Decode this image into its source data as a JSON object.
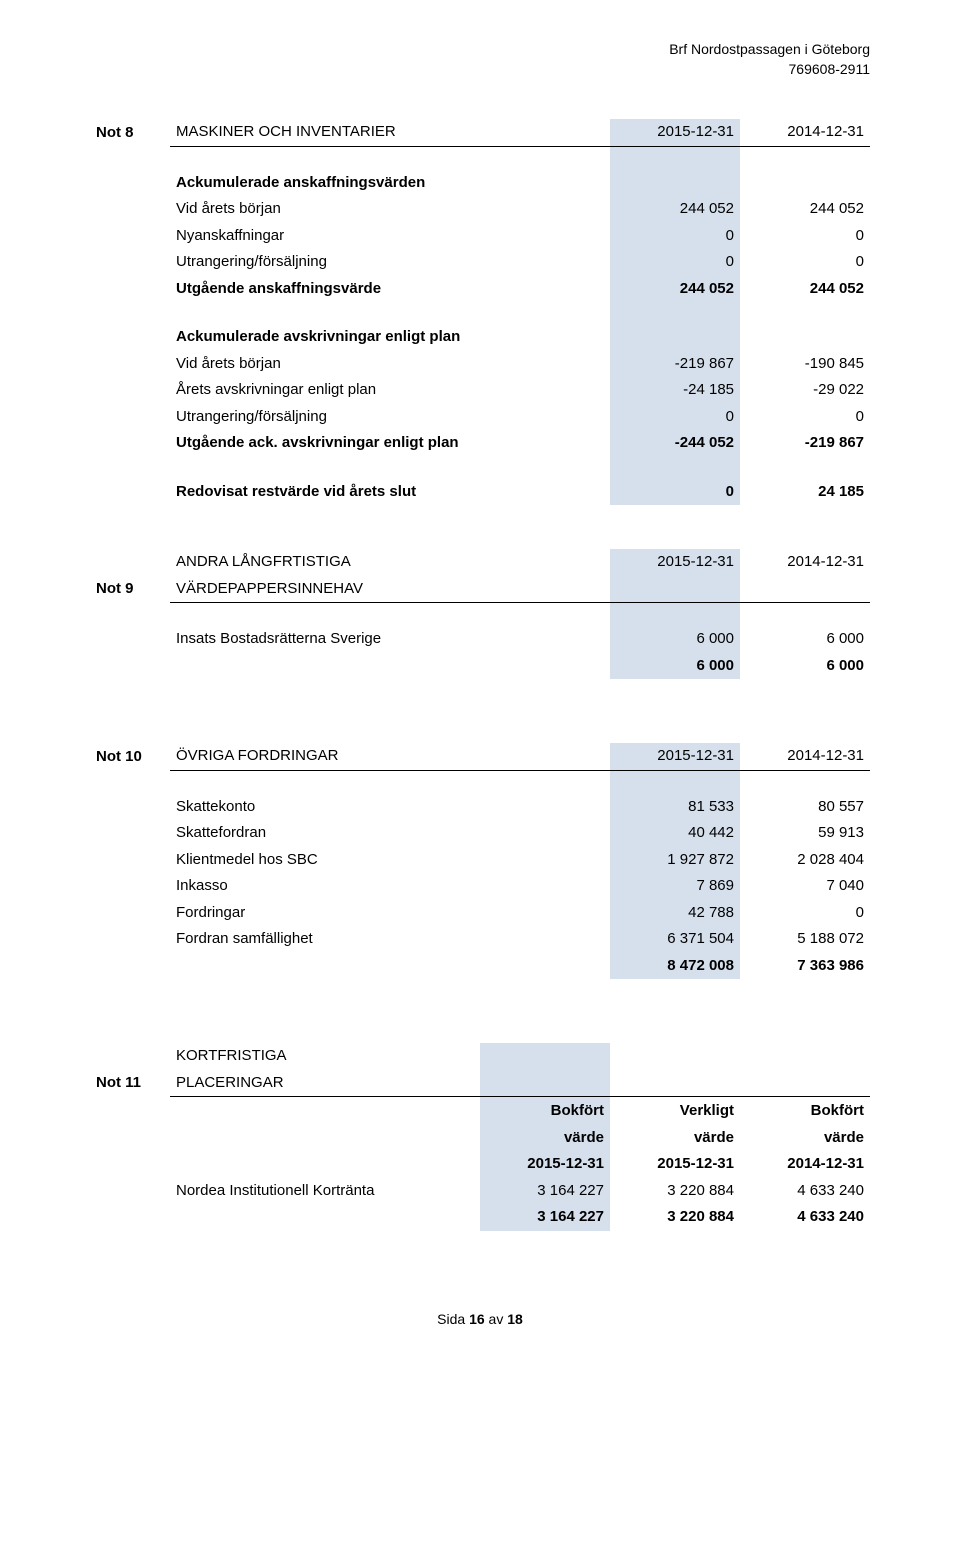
{
  "header": {
    "org_name": "Brf Nordostpassagen i Göteborg",
    "org_number": "769608-2911"
  },
  "colors": {
    "highlight_bg": "#d6e0ed",
    "text": "#000000",
    "background": "#ffffff",
    "rule": "#000000"
  },
  "typography": {
    "font_family": "Segoe UI, Helvetica Neue, Arial, sans-serif",
    "body_fontsize": 15,
    "header_fontsize": 14,
    "note_id_fontsize": 17
  },
  "not8": {
    "id": "Not 8",
    "title": "MASKINER OCH INVENTARIER",
    "col1": "2015-12-31",
    "col2": "2014-12-31",
    "section1_title": "Ackumulerade anskaffningsvärden",
    "rows1": [
      {
        "label": "Vid årets början",
        "v1": "244 052",
        "v2": "244 052"
      },
      {
        "label": "Nyanskaffningar",
        "v1": "0",
        "v2": "0"
      },
      {
        "label": "Utrangering/försäljning",
        "v1": "0",
        "v2": "0"
      }
    ],
    "sum1": {
      "label": "Utgående anskaffningsvärde",
      "v1": "244 052",
      "v2": "244 052"
    },
    "section2_title": "Ackumulerade avskrivningar enligt plan",
    "rows2": [
      {
        "label": "Vid årets början",
        "v1": "-219 867",
        "v2": "-190 845"
      },
      {
        "label": "Årets avskrivningar enligt plan",
        "v1": "-24 185",
        "v2": "-29 022"
      },
      {
        "label": "Utrangering/försäljning",
        "v1": "0",
        "v2": "0"
      }
    ],
    "sum2": {
      "label": "Utgående ack. avskrivningar enligt plan",
      "v1": "-244 052",
      "v2": "-219 867"
    },
    "result": {
      "label": "Redovisat restvärde vid årets slut",
      "v1": "0",
      "v2": "24 185"
    }
  },
  "not9": {
    "id": "Not 9",
    "title_line1": "ANDRA LÅNGFRTISTIGA",
    "title_line2": "VÄRDEPAPPERSINNEHAV",
    "col1": "2015-12-31",
    "col2": "2014-12-31",
    "rows": [
      {
        "label": "Insats Bostadsrätterna Sverige",
        "v1": "6 000",
        "v2": "6 000"
      }
    ],
    "sum": {
      "v1": "6 000",
      "v2": "6 000"
    }
  },
  "not10": {
    "id": "Not 10",
    "title": "ÖVRIGA FORDRINGAR",
    "col1": "2015-12-31",
    "col2": "2014-12-31",
    "rows": [
      {
        "label": "Skattekonto",
        "v1": "81 533",
        "v2": "80 557"
      },
      {
        "label": "Skattefordran",
        "v1": "40 442",
        "v2": "59 913"
      },
      {
        "label": "Klientmedel hos SBC",
        "v1": "1 927 872",
        "v2": "2 028 404"
      },
      {
        "label": "Inkasso",
        "v1": "7 869",
        "v2": "7 040"
      },
      {
        "label": "Fordringar",
        "v1": "42 788",
        "v2": "0"
      },
      {
        "label": "Fordran samfällighet",
        "v1": "6 371 504",
        "v2": "5 188 072"
      }
    ],
    "sum": {
      "v1": "8 472 008",
      "v2": "7 363 986"
    }
  },
  "not11": {
    "id": "Not 11",
    "title_line1": "KORTFRISTIGA",
    "title_line2": "PLACERINGAR",
    "head": {
      "c1_l1": "Bokfört",
      "c1_l2": "värde",
      "c1_l3": "2015-12-31",
      "c2_l1": "Verkligt",
      "c2_l2": "värde",
      "c2_l3": "2015-12-31",
      "c3_l1": "Bokfört",
      "c3_l2": "värde",
      "c3_l3": "2014-12-31"
    },
    "rows": [
      {
        "label": "Nordea Institutionell Kortränta",
        "v1": "3 164 227",
        "v2": "3 220 884",
        "v3": "4 633 240"
      }
    ],
    "sum": {
      "v1": "3 164 227",
      "v2": "3 220 884",
      "v3": "4 633 240"
    }
  },
  "footer": {
    "prefix": "Sida ",
    "page": "16",
    "middle": " av ",
    "total": "18"
  }
}
